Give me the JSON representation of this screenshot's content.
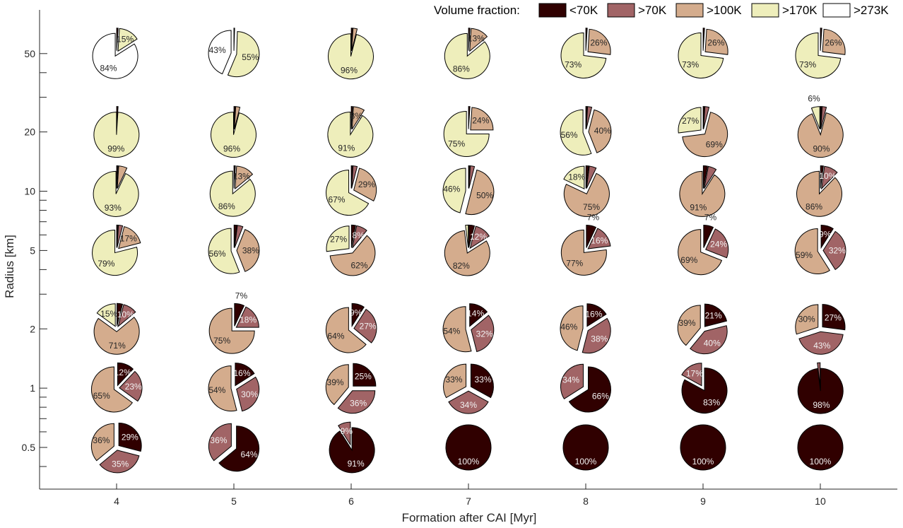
{
  "chart_data": {
    "type": "pie",
    "xlabel": "Formation after CAI [Myr]",
    "ylabel": "Radius [km]",
    "x": [
      4,
      5,
      6,
      7,
      8,
      9,
      10
    ],
    "x_tick_labels": [
      "4",
      "5",
      "6",
      "7",
      "8",
      "9",
      "10"
    ],
    "y_radius": [
      50,
      20,
      10,
      5,
      2,
      1,
      0.5
    ],
    "y_tick_labels": [
      "50",
      "20",
      "10",
      "5",
      "2",
      "1",
      "0.5"
    ],
    "legend": {
      "title": "Volume fraction:",
      "entries": [
        "<70K",
        ">70K",
        ">100K",
        ">170K",
        ">273K"
      ],
      "colors": [
        "#300000",
        "#a16466",
        "#d4ac8d",
        "#eeeebb",
        "#ffffff"
      ],
      "position": "top-right"
    },
    "pies": [
      {
        "x": 4,
        "r": 50,
        "fractions": [
          1,
          0,
          0,
          15,
          84
        ],
        "labels": [
          "",
          "",
          "",
          "15%",
          "84%"
        ]
      },
      {
        "x": 5,
        "r": 50,
        "fractions": [
          0.5,
          0,
          0,
          55,
          43
        ],
        "labels": [
          "",
          "",
          "",
          "55%",
          "43%"
        ]
      },
      {
        "x": 6,
        "r": 50,
        "fractions": [
          1,
          0,
          3,
          96,
          0
        ],
        "labels": [
          "",
          "",
          "",
          "96%",
          ""
        ]
      },
      {
        "x": 7,
        "r": 50,
        "fractions": [
          1,
          0,
          13,
          86,
          0
        ],
        "labels": [
          "",
          "",
          "13%",
          "86%",
          ""
        ]
      },
      {
        "x": 8,
        "r": 50,
        "fractions": [
          1,
          0,
          26,
          73,
          0
        ],
        "labels": [
          "",
          "",
          "26%",
          "73%",
          ""
        ]
      },
      {
        "x": 9,
        "r": 50,
        "fractions": [
          1,
          0,
          26,
          73,
          0
        ],
        "labels": [
          "",
          "",
          "26%",
          "73%",
          ""
        ]
      },
      {
        "x": 10,
        "r": 50,
        "fractions": [
          1,
          0,
          26,
          73,
          0
        ],
        "labels": [
          "",
          "",
          "26%",
          "73%",
          ""
        ]
      },
      {
        "x": 4,
        "r": 20,
        "fractions": [
          1,
          0,
          0,
          99,
          0
        ],
        "labels": [
          "",
          "",
          "",
          "99%",
          ""
        ]
      },
      {
        "x": 5,
        "r": 20,
        "fractions": [
          1,
          0,
          3,
          96,
          0
        ],
        "labels": [
          "",
          "",
          "",
          "96%",
          ""
        ]
      },
      {
        "x": 6,
        "r": 20,
        "fractions": [
          1,
          0,
          8,
          91,
          0
        ],
        "labels": [
          "",
          "",
          "8%",
          "91%",
          ""
        ]
      },
      {
        "x": 7,
        "r": 20,
        "fractions": [
          1,
          0,
          24,
          75,
          0
        ],
        "labels": [
          "",
          "",
          "24%",
          "75%",
          ""
        ]
      },
      {
        "x": 8,
        "r": 20,
        "fractions": [
          1,
          3,
          40,
          56,
          0
        ],
        "labels": [
          "",
          "",
          "40%",
          "56%",
          ""
        ]
      },
      {
        "x": 9,
        "r": 20,
        "fractions": [
          1,
          3,
          69,
          27,
          0
        ],
        "labels": [
          "",
          "",
          "69%",
          "27%",
          ""
        ]
      },
      {
        "x": 10,
        "r": 20,
        "fractions": [
          1,
          3,
          90,
          6,
          0
        ],
        "labels": [
          "",
          "",
          "90%",
          "6%",
          ""
        ]
      },
      {
        "x": 4,
        "r": 10,
        "fractions": [
          1,
          0,
          6,
          93,
          0
        ],
        "labels": [
          "",
          "",
          "",
          "93%",
          ""
        ]
      },
      {
        "x": 5,
        "r": 10,
        "fractions": [
          1,
          0,
          13,
          86,
          0
        ],
        "labels": [
          "",
          "",
          "13%",
          "86%",
          ""
        ]
      },
      {
        "x": 6,
        "r": 10,
        "fractions": [
          1,
          3,
          29,
          67,
          0
        ],
        "labels": [
          "",
          "",
          "29%",
          "67%",
          ""
        ]
      },
      {
        "x": 7,
        "r": 10,
        "fractions": [
          1,
          3,
          50,
          46,
          0
        ],
        "labels": [
          "",
          "",
          "50%",
          "46%",
          ""
        ]
      },
      {
        "x": 8,
        "r": 10,
        "fractions": [
          2,
          5,
          75,
          18,
          0
        ],
        "labels": [
          "",
          "",
          "75%",
          "18%",
          ""
        ]
      },
      {
        "x": 9,
        "r": 10,
        "fractions": [
          3,
          6,
          91,
          0,
          0
        ],
        "labels": [
          "",
          "",
          "91%",
          "",
          ""
        ]
      },
      {
        "x": 10,
        "r": 10,
        "fractions": [
          2,
          10,
          86,
          0,
          0
        ],
        "labels": [
          "",
          "10%",
          "86%",
          "",
          ""
        ]
      },
      {
        "x": 4,
        "r": 5,
        "fractions": [
          1,
          3,
          17,
          79,
          0
        ],
        "labels": [
          "",
          "",
          "17%",
          "79%",
          ""
        ]
      },
      {
        "x": 5,
        "r": 5,
        "fractions": [
          2,
          4,
          38,
          56,
          0
        ],
        "labels": [
          "",
          "",
          "38%",
          "56%",
          ""
        ]
      },
      {
        "x": 6,
        "r": 5,
        "fractions": [
          3,
          8,
          62,
          27,
          0
        ],
        "labels": [
          "",
          "8%",
          "62%",
          "27%",
          ""
        ]
      },
      {
        "x": 7,
        "r": 5,
        "fractions": [
          4,
          12,
          82,
          2,
          0
        ],
        "labels": [
          "",
          "12%",
          "82%",
          "",
          ""
        ]
      },
      {
        "x": 8,
        "r": 5,
        "fractions": [
          7,
          16,
          77,
          0,
          0
        ],
        "labels": [
          "7%",
          "16%",
          "77%",
          "",
          ""
        ]
      },
      {
        "x": 9,
        "r": 5,
        "fractions": [
          7,
          24,
          69,
          0,
          0
        ],
        "labels": [
          "7%",
          "24%",
          "69%",
          "",
          ""
        ]
      },
      {
        "x": 10,
        "r": 5,
        "fractions": [
          9,
          32,
          59,
          0,
          0
        ],
        "labels": [
          "9%",
          "32%",
          "59%",
          "",
          ""
        ]
      },
      {
        "x": 4,
        "r": 2,
        "fractions": [
          4,
          10,
          71,
          15,
          0
        ],
        "labels": [
          "",
          "10%",
          "71%",
          "15%",
          ""
        ]
      },
      {
        "x": 5,
        "r": 2,
        "fractions": [
          7,
          18,
          75,
          0,
          0
        ],
        "labels": [
          "7%",
          "18%",
          "75%",
          "",
          ""
        ]
      },
      {
        "x": 6,
        "r": 2,
        "fractions": [
          9,
          27,
          64,
          0,
          0
        ],
        "labels": [
          "9%",
          "27%",
          "64%",
          "",
          ""
        ]
      },
      {
        "x": 7,
        "r": 2,
        "fractions": [
          14,
          32,
          54,
          0,
          0
        ],
        "labels": [
          "14%",
          "32%",
          "54%",
          "",
          ""
        ]
      },
      {
        "x": 8,
        "r": 2,
        "fractions": [
          16,
          38,
          46,
          0,
          0
        ],
        "labels": [
          "16%",
          "38%",
          "46%",
          "",
          ""
        ]
      },
      {
        "x": 9,
        "r": 2,
        "fractions": [
          21,
          40,
          39,
          0,
          0
        ],
        "labels": [
          "21%",
          "40%",
          "39%",
          "",
          ""
        ]
      },
      {
        "x": 10,
        "r": 2,
        "fractions": [
          27,
          43,
          30,
          0,
          0
        ],
        "labels": [
          "27%",
          "43%",
          "30%",
          "",
          ""
        ]
      },
      {
        "x": 4,
        "r": 1,
        "fractions": [
          12,
          23,
          65,
          0,
          0
        ],
        "labels": [
          "12%",
          "23%",
          "65%",
          "",
          ""
        ]
      },
      {
        "x": 5,
        "r": 1,
        "fractions": [
          16,
          30,
          54,
          0,
          0
        ],
        "labels": [
          "16%",
          "30%",
          "54%",
          "",
          ""
        ]
      },
      {
        "x": 6,
        "r": 1,
        "fractions": [
          25,
          36,
          39,
          0,
          0
        ],
        "labels": [
          "25%",
          "36%",
          "39%",
          "",
          ""
        ]
      },
      {
        "x": 7,
        "r": 1,
        "fractions": [
          33,
          34,
          33,
          0,
          0
        ],
        "labels": [
          "33%",
          "34%",
          "33%",
          "",
          ""
        ]
      },
      {
        "x": 8,
        "r": 1,
        "fractions": [
          66,
          34,
          0,
          0,
          0
        ],
        "labels": [
          "66%",
          "34%",
          "",
          "",
          ""
        ]
      },
      {
        "x": 9,
        "r": 1,
        "fractions": [
          83,
          17,
          0,
          0,
          0
        ],
        "labels": [
          "83%",
          "17%",
          "",
          "",
          ""
        ]
      },
      {
        "x": 10,
        "r": 1,
        "fractions": [
          98,
          2,
          0,
          0,
          0
        ],
        "labels": [
          "98%",
          "",
          "",
          "",
          ""
        ]
      },
      {
        "x": 4,
        "r": 0.5,
        "fractions": [
          29,
          35,
          36,
          0,
          0
        ],
        "labels": [
          "29%",
          "35%",
          "36%",
          "",
          ""
        ]
      },
      {
        "x": 5,
        "r": 0.5,
        "fractions": [
          64,
          36,
          0,
          0,
          0
        ],
        "labels": [
          "64%",
          "36%",
          "",
          "",
          ""
        ]
      },
      {
        "x": 6,
        "r": 0.5,
        "fractions": [
          91,
          9,
          0,
          0,
          0
        ],
        "labels": [
          "91%",
          "9%",
          "",
          "",
          ""
        ]
      },
      {
        "x": 7,
        "r": 0.5,
        "fractions": [
          100,
          0,
          0,
          0,
          0
        ],
        "labels": [
          "100%",
          "",
          "",
          "",
          ""
        ]
      },
      {
        "x": 8,
        "r": 0.5,
        "fractions": [
          100,
          0,
          0,
          0,
          0
        ],
        "labels": [
          "100%",
          "",
          "",
          "",
          ""
        ]
      },
      {
        "x": 9,
        "r": 0.5,
        "fractions": [
          100,
          0,
          0,
          0,
          0
        ],
        "labels": [
          "100%",
          "",
          "",
          "",
          ""
        ]
      },
      {
        "x": 10,
        "r": 0.5,
        "fractions": [
          100,
          0,
          0,
          0,
          0
        ],
        "labels": [
          "100%",
          "",
          "",
          "",
          ""
        ]
      }
    ]
  }
}
